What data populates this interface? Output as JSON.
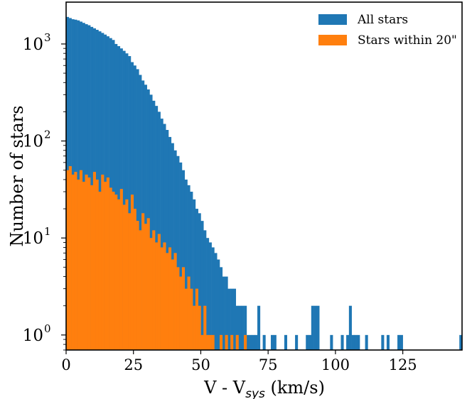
{
  "chart_data": {
    "type": "histogram",
    "y_scale": "log",
    "bin_width": 1,
    "xlim": [
      0,
      147
    ],
    "ylim": [
      0.7,
      2700
    ],
    "xticks": [
      0,
      25,
      50,
      75,
      100,
      125
    ],
    "yticks": [
      {
        "value": 1,
        "base": "10",
        "exp": "0"
      },
      {
        "value": 10,
        "base": "10",
        "exp": "1"
      },
      {
        "value": 100,
        "base": "10",
        "exp": "2"
      },
      {
        "value": 1000,
        "base": "10",
        "exp": "3"
      }
    ],
    "xlabel": {
      "prefix": "V - V",
      "subscript": "sys",
      "suffix": " (km/s)"
    },
    "ylabel": "Number of stars",
    "legend_position": "top-right",
    "series": [
      {
        "name": "All stars",
        "color": "#1f77b4",
        "values": [
          1900,
          1850,
          1800,
          1780,
          1750,
          1700,
          1650,
          1600,
          1560,
          1500,
          1450,
          1400,
          1350,
          1300,
          1250,
          1200,
          1150,
          1100,
          1000,
          950,
          900,
          850,
          800,
          750,
          650,
          600,
          550,
          480,
          420,
          380,
          340,
          300,
          260,
          230,
          200,
          170,
          150,
          130,
          110,
          95,
          80,
          70,
          60,
          50,
          40,
          35,
          30,
          25,
          20,
          18,
          15,
          12,
          10,
          9,
          8,
          7,
          6,
          5,
          4,
          4,
          3,
          3,
          3,
          2,
          2,
          2,
          2,
          1,
          1,
          1,
          1,
          2,
          0,
          1,
          0,
          0,
          1,
          1,
          0,
          0,
          0,
          1,
          0,
          0,
          0,
          1,
          0,
          0,
          0,
          1,
          1,
          2,
          2,
          2,
          0,
          0,
          0,
          0,
          1,
          0,
          0,
          0,
          1,
          0,
          1,
          2,
          1,
          1,
          1,
          0,
          0,
          1,
          0,
          0,
          0,
          0,
          0,
          1,
          0,
          1,
          0,
          0,
          0,
          1,
          1,
          0,
          0,
          0,
          0,
          0,
          0,
          0,
          0,
          0,
          0,
          0,
          0,
          0,
          0,
          0,
          0,
          0,
          0,
          0,
          0,
          0,
          1
        ]
      },
      {
        "name": "Stars within 20\"",
        "color": "#ff7f0e",
        "values": [
          50,
          55,
          45,
          48,
          40,
          50,
          38,
          45,
          42,
          35,
          48,
          40,
          30,
          45,
          38,
          42,
          33,
          30,
          28,
          25,
          32,
          22,
          25,
          18,
          28,
          20,
          15,
          12,
          18,
          14,
          16,
          10,
          12,
          9,
          11,
          8,
          9,
          7,
          8,
          6,
          7,
          5,
          4,
          5,
          3,
          4,
          3,
          2,
          3,
          2,
          1,
          2,
          1,
          1,
          1,
          0,
          0,
          1,
          0,
          1,
          0,
          1,
          0,
          1,
          0,
          0,
          1
        ]
      }
    ]
  }
}
